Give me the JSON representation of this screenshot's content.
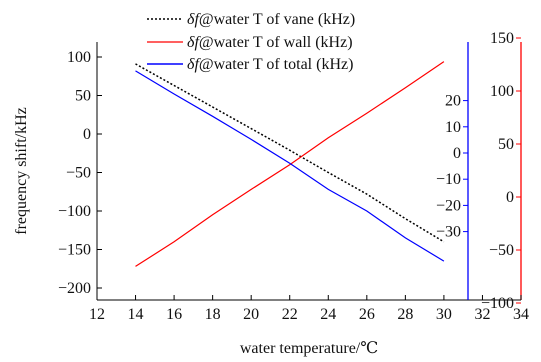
{
  "chart_data": {
    "type": "line",
    "xlabel": "water temperature/℃",
    "ylabel": "frequency shift/kHz",
    "xlim": [
      12,
      34
    ],
    "x_ticks": [
      12,
      14,
      16,
      18,
      20,
      22,
      24,
      26,
      28,
      30,
      32,
      34
    ],
    "ylim_left": [
      -200,
      120
    ],
    "left_ticks": [
      -200,
      -150,
      -100,
      -50,
      0,
      50,
      100
    ],
    "blue_axis": {
      "color": "#0000ff",
      "ylim": [
        -31,
        26
      ],
      "ticks": [
        -30,
        -20,
        -10,
        0,
        10,
        20
      ]
    },
    "red_axis": {
      "color": "#ff0000",
      "ylim": [
        -156,
        179
      ],
      "ticks": [
        -100,
        -50,
        0,
        50,
        100,
        150
      ]
    },
    "x": [
      14,
      16,
      18,
      20,
      22,
      24,
      26,
      28,
      30
    ],
    "series": [
      {
        "name": "δf@water T of vane (kHz)",
        "legend_prefix": "δf",
        "legend_suffix": "@water T of vane (kHz)",
        "color": "#000000",
        "style": "dotted",
        "axis": "left",
        "values": [
          91,
          63,
          35,
          7,
          -21,
          -50,
          -78,
          -110,
          -140
        ]
      },
      {
        "name": "δf@water T of wall (kHz)",
        "legend_prefix": "δf",
        "legend_suffix": "@water T of wall (kHz)",
        "color": "#ff0000",
        "style": "solid",
        "axis": "left",
        "values": [
          -172,
          -140,
          -105,
          -72,
          -40,
          -5,
          27,
          60,
          94
        ]
      },
      {
        "name": "δf@water T of total (kHz)",
        "legend_prefix": "δf",
        "legend_suffix": "@water T of total (kHz)",
        "color": "#0000ff",
        "style": "solid",
        "axis": "left",
        "values": [
          82,
          52,
          23,
          -7,
          -38,
          -72,
          -100,
          -135,
          -165
        ]
      }
    ]
  }
}
